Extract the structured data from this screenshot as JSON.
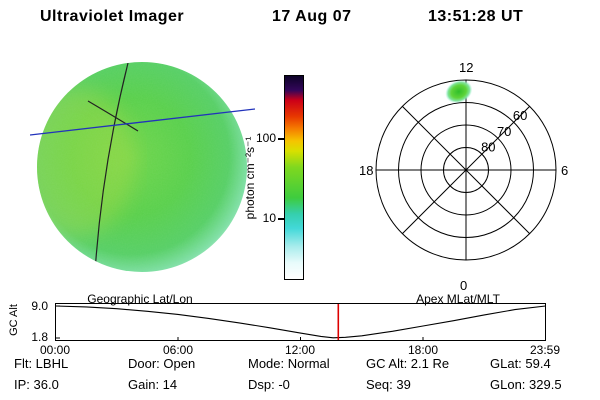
{
  "header": {
    "title": "Ultraviolet Imager",
    "date": "17 Aug 07",
    "time": "13:51:28 UT"
  },
  "colorbar": {
    "unit_label": "photon cm⁻²s⁻¹",
    "ticks": [
      "100",
      "10"
    ]
  },
  "polar": {
    "mlt_top": "12",
    "mlt_left": "18",
    "mlt_right": "6",
    "mlt_bottom": "0",
    "lat_labels": [
      "60",
      "70",
      "80"
    ]
  },
  "timeline": {
    "left_title": "Geographic Lat/Lon",
    "right_title": "Apex MLat/MLT",
    "ylabel": "GC Alt",
    "ytick_top": "9.0",
    "ytick_bottom": "1.8",
    "xticks": [
      "00:00",
      "06:00",
      "12:00",
      "18:00",
      "23:59"
    ]
  },
  "status": {
    "row1": [
      "Flt: LBHL",
      "Door: Open",
      "Mode: Normal",
      "GC Alt: 2.1 Re",
      "GLat: 59.4"
    ],
    "row2": [
      "IP: 36.0",
      "Gain: 14",
      "Dsp: -0",
      "Seq: 39",
      "GLon: 329.5"
    ]
  },
  "colors": {
    "track_blue": "#2233bb",
    "marker_red": "#dd0000",
    "disk_green": "#58d04b"
  },
  "chart_data": [
    {
      "type": "heatmap",
      "title": "UV Earth disk image",
      "value_label": "photon cm⁻²s⁻¹",
      "scale": "log",
      "value_range_est": [
        1,
        700
      ],
      "colorbar_ticks": [
        10,
        100
      ],
      "disk_typical_value_est": 20,
      "overlays": [
        "geographic lat/lon grid arcs (black)",
        "straight track line (blue)"
      ]
    },
    {
      "type": "scatter",
      "title": "Apex MLat/MLT dial",
      "rings_mlat": [
        80,
        70,
        60,
        50
      ],
      "ring_labels": [
        60,
        70,
        80
      ],
      "mlt_spokes": [
        0,
        3,
        6,
        9,
        12,
        15,
        18,
        21
      ],
      "axis_labels": {
        "top": "12",
        "left": "18",
        "right": "6",
        "bottom": "0"
      },
      "emission_blob": {
        "mlt": 12.35,
        "mlat": 55,
        "rx": 14,
        "ry": 11,
        "note": "dayside auroral emission patch near noon MLT"
      }
    },
    {
      "type": "line",
      "title": "Geocentric altitude vs UT",
      "ylabel": "GC Alt",
      "ylim": [
        1.8,
        9.0
      ],
      "xlim_hours": [
        0,
        24
      ],
      "xticks": [
        "00:00",
        "06:00",
        "12:00",
        "18:00",
        "23:59"
      ],
      "x_hours": [
        0,
        1.5,
        3,
        4.5,
        6,
        7.5,
        9,
        10.5,
        12,
        13,
        13.6,
        14.2,
        15,
        16.5,
        18,
        19.5,
        21,
        22.5,
        24
      ],
      "alt_re": [
        9.0,
        8.8,
        8.4,
        7.8,
        7.1,
        6.2,
        5.2,
        4.1,
        2.9,
        2.15,
        1.85,
        1.95,
        2.3,
        3.3,
        4.5,
        5.7,
        7.0,
        8.2,
        9.0
      ],
      "marker_time_hours": 13.85,
      "marker_color": "#dd0000",
      "current_alt_re": 2.1
    }
  ]
}
